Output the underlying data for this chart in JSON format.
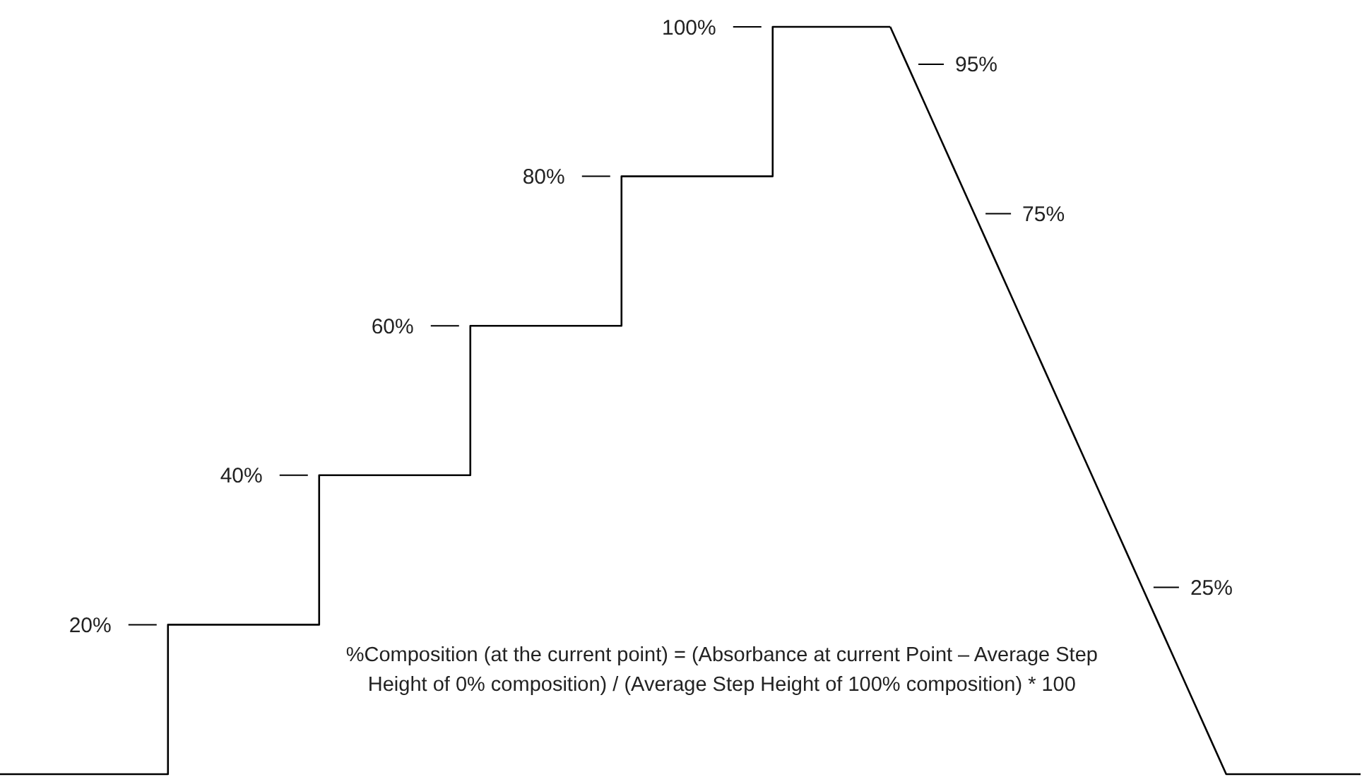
{
  "chart_data": {
    "type": "line",
    "categories": [
      null,
      null,
      null,
      null,
      null,
      null,
      null,
      null,
      null,
      null,
      null,
      null,
      null,
      null,
      null,
      null,
      null,
      null,
      null,
      null,
      null,
      null,
      null,
      null,
      null,
      null,
      null,
      null,
      null,
      null,
      null,
      null,
      null,
      null,
      null,
      null,
      null,
      null,
      null,
      null,
      null,
      null,
      null,
      null,
      null,
      null,
      null,
      null,
      null,
      null,
      null,
      null,
      null,
      null,
      null,
      null,
      null,
      null,
      null,
      null,
      null,
      null,
      null,
      null,
      null,
      null,
      null,
      null,
      null,
      null,
      null,
      null,
      null,
      null,
      null,
      null,
      null,
      null,
      null,
      null,
      null,
      null
    ],
    "series": [
      {
        "type": "step",
        "color": "#000000",
        "values": [
          0,
          0,
          0,
          0,
          0,
          0,
          0,
          0,
          0,
          0,
          20,
          20,
          20,
          20,
          20,
          20,
          20,
          20,
          20,
          40,
          40,
          40,
          40,
          40,
          40,
          40,
          40,
          40,
          60,
          60,
          60,
          60,
          60,
          60,
          60,
          60,
          60,
          80,
          80,
          80,
          80,
          80,
          80,
          80,
          80,
          80,
          100,
          100,
          100,
          100,
          100,
          100,
          100,
          100,
          null,
          null,
          null,
          null,
          null,
          null,
          null,
          null,
          null,
          null,
          null,
          null,
          null,
          null,
          null,
          null,
          null,
          null,
          null,
          null,
          null,
          null,
          null,
          null,
          null,
          null,
          null,
          null
        ],
        "value_labels": [
          null,
          null,
          null,
          null,
          null,
          null,
          null,
          null,
          null,
          null,
          "20%",
          null,
          null,
          null,
          null,
          null,
          null,
          null,
          null,
          "40%",
          null,
          null,
          null,
          null,
          null,
          null,
          null,
          null,
          "60%",
          null,
          null,
          null,
          null,
          null,
          null,
          null,
          null,
          "80%",
          null,
          null,
          null,
          null,
          null,
          null,
          null,
          null,
          "100%",
          null,
          null,
          null,
          null,
          null,
          null,
          null,
          null,
          null,
          null,
          null,
          null,
          null,
          null,
          null,
          null,
          null,
          null,
          null,
          null,
          null,
          null,
          null,
          null,
          null,
          null,
          null,
          null,
          null,
          null,
          null,
          null,
          null,
          null,
          null
        ]
      },
      {
        "color": "#000000",
        "values": [
          null,
          null,
          null,
          null,
          null,
          null,
          null,
          null,
          null,
          null,
          null,
          null,
          null,
          null,
          null,
          null,
          null,
          null,
          null,
          null,
          null,
          null,
          null,
          null,
          null,
          null,
          null,
          null,
          null,
          null,
          null,
          null,
          null,
          null,
          null,
          null,
          null,
          null,
          null,
          null,
          null,
          null,
          null,
          null,
          null,
          null,
          null,
          null,
          null,
          null,
          null,
          null,
          null,
          100,
          95,
          90,
          85,
          80,
          75,
          70,
          65,
          60,
          55,
          50,
          45,
          40,
          35,
          30,
          25,
          20,
          15,
          10,
          5,
          0,
          0,
          0,
          0,
          0,
          0,
          0,
          0,
          0
        ],
        "value_labels": [
          null,
          null,
          null,
          null,
          null,
          null,
          null,
          null,
          null,
          null,
          null,
          null,
          null,
          null,
          null,
          null,
          null,
          null,
          null,
          null,
          null,
          null,
          null,
          null,
          null,
          null,
          null,
          null,
          null,
          null,
          null,
          null,
          null,
          null,
          null,
          null,
          null,
          null,
          null,
          null,
          null,
          null,
          null,
          null,
          null,
          null,
          null,
          null,
          null,
          null,
          null,
          null,
          null,
          null,
          "95%",
          null,
          null,
          null,
          "75%",
          null,
          null,
          null,
          null,
          null,
          null,
          null,
          null,
          null,
          "25%",
          null,
          null,
          null,
          null,
          null,
          null,
          null,
          null,
          null,
          null,
          null,
          null,
          null
        ]
      }
    ],
    "annotations": [
      "%Composition (at the current point) = (Absorbance at current Point – Average Step Height of 0% composition) / (Average Step Height of 100% composition) * 100"
    ]
  }
}
